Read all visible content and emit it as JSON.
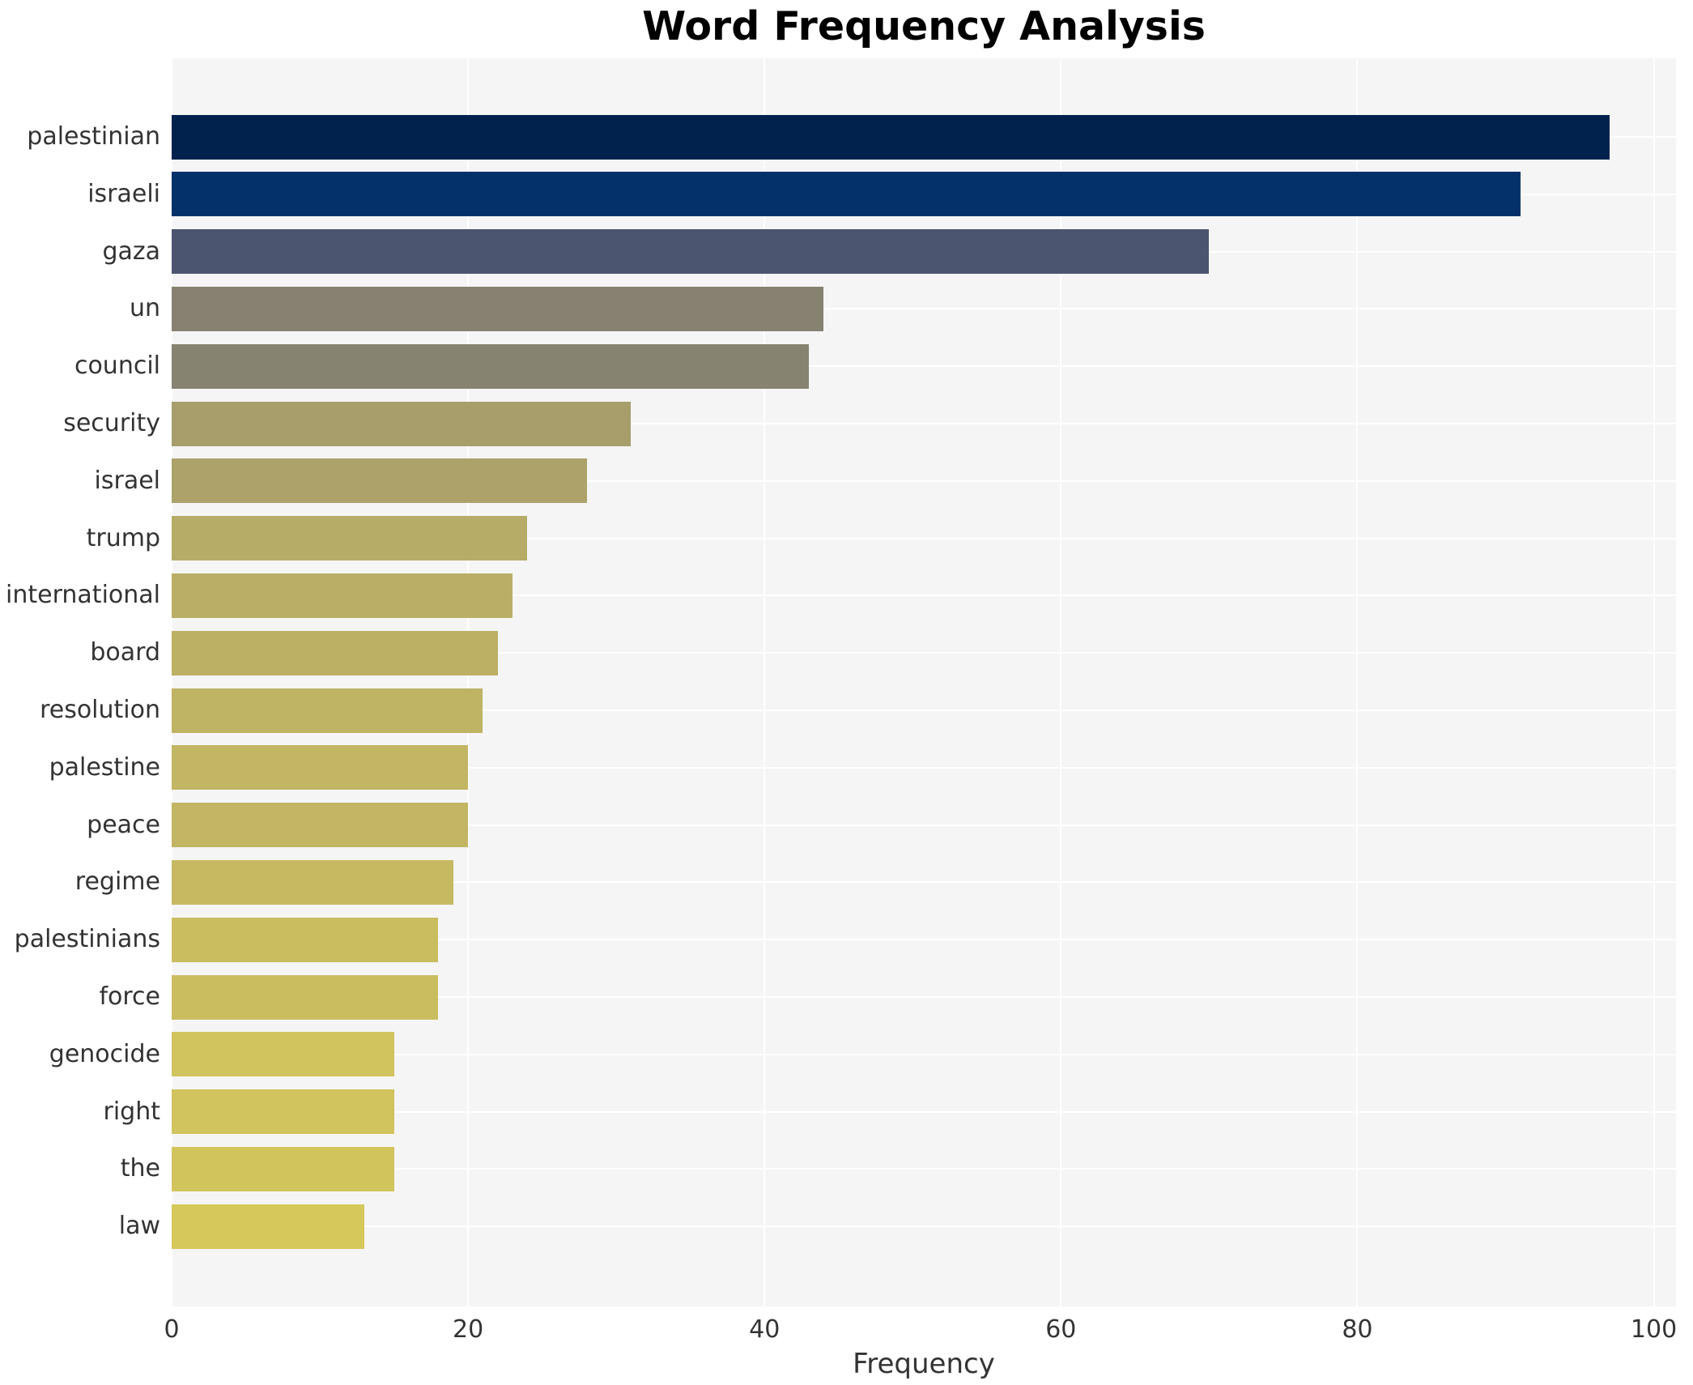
{
  "chart_data": {
    "type": "bar",
    "orientation": "horizontal",
    "title": "Word Frequency Analysis",
    "xlabel": "Frequency",
    "ylabel": "",
    "categories": [
      "palestinian",
      "israeli",
      "gaza",
      "un",
      "council",
      "security",
      "israel",
      "trump",
      "international",
      "board",
      "resolution",
      "palestine",
      "peace",
      "regime",
      "palestinians",
      "force",
      "genocide",
      "right",
      "the",
      "law"
    ],
    "values": [
      97,
      91,
      70,
      44,
      43,
      31,
      28,
      24,
      23,
      22,
      21,
      20,
      20,
      19,
      18,
      18,
      15,
      15,
      15,
      13
    ],
    "bar_colors": [
      "#01224d",
      "#05316b",
      "#4c556f",
      "#868170",
      "#878371",
      "#a89e6b",
      "#aca26a",
      "#b7ac67",
      "#baae66",
      "#bcb065",
      "#bfb364",
      "#c2b563",
      "#c2b563",
      "#c6b962",
      "#cabd60",
      "#cabd60",
      "#d1c35d",
      "#d1c35d",
      "#d2c45d",
      "#d6c85a"
    ],
    "xticks": [
      0,
      20,
      40,
      60,
      80,
      100
    ],
    "xlim": [
      0,
      101.5
    ],
    "grid": true,
    "legend_position": "none",
    "colormap": "cividis",
    "plot_background": "#f5f5f6",
    "grid_color": "#ffffff",
    "tick_color": "#333333",
    "title_color": "#000000"
  }
}
